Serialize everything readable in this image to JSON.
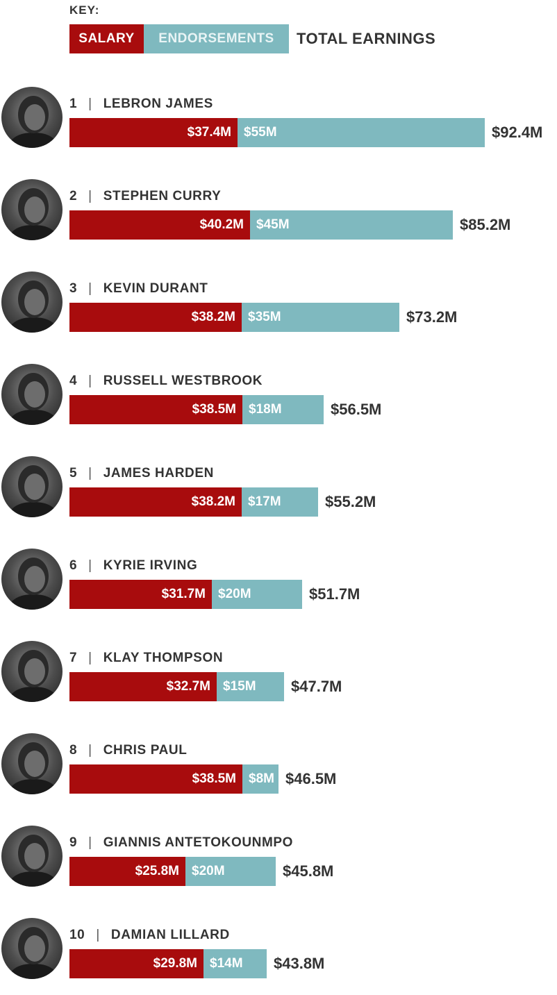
{
  "key": {
    "label": "KEY:",
    "salary": "SALARY",
    "endorsements": "ENDORSEMENTS",
    "total": "TOTAL EARNINGS"
  },
  "colors": {
    "salary": "#a80c0d",
    "endorsements": "#7fb9bf",
    "text": "#333333"
  },
  "chart_data": {
    "type": "bar",
    "orientation": "horizontal",
    "stacked": true,
    "unit": "$M",
    "categories": [
      "LEBRON JAMES",
      "STEPHEN CURRY",
      "KEVIN DURANT",
      "RUSSELL WESTBROOK",
      "JAMES HARDEN",
      "KYRIE IRVING",
      "KLAY THOMPSON",
      "CHRIS PAUL",
      "GIANNIS ANTETOKOUNMPO",
      "DAMIAN LILLARD"
    ],
    "series": [
      {
        "name": "SALARY",
        "values": [
          37.4,
          40.2,
          38.2,
          38.5,
          38.2,
          31.7,
          32.7,
          38.5,
          25.8,
          29.8
        ]
      },
      {
        "name": "ENDORSEMENTS",
        "values": [
          55,
          45,
          35,
          18,
          17,
          20,
          15,
          8,
          20,
          14
        ]
      }
    ],
    "totals": [
      92.4,
      85.2,
      73.2,
      56.5,
      55.2,
      51.7,
      47.7,
      46.5,
      45.8,
      43.8
    ],
    "players": [
      {
        "rank": "1",
        "name": "LEBRON JAMES",
        "salary": 37.4,
        "endorsements": 55,
        "total": 92.4,
        "salary_label": "$37.4M",
        "endorsements_label": "$55M",
        "total_label": "$92.4M"
      },
      {
        "rank": "2",
        "name": "STEPHEN CURRY",
        "salary": 40.2,
        "endorsements": 45,
        "total": 85.2,
        "salary_label": "$40.2M",
        "endorsements_label": "$45M",
        "total_label": "$85.2M"
      },
      {
        "rank": "3",
        "name": "KEVIN DURANT",
        "salary": 38.2,
        "endorsements": 35,
        "total": 73.2,
        "salary_label": "$38.2M",
        "endorsements_label": "$35M",
        "total_label": "$73.2M"
      },
      {
        "rank": "4",
        "name": "RUSSELL WESTBROOK",
        "salary": 38.5,
        "endorsements": 18,
        "total": 56.5,
        "salary_label": "$38.5M",
        "endorsements_label": "$18M",
        "total_label": "$56.5M"
      },
      {
        "rank": "5",
        "name": "JAMES HARDEN",
        "salary": 38.2,
        "endorsements": 17,
        "total": 55.2,
        "salary_label": "$38.2M",
        "endorsements_label": "$17M",
        "total_label": "$55.2M"
      },
      {
        "rank": "6",
        "name": "KYRIE IRVING",
        "salary": 31.7,
        "endorsements": 20,
        "total": 51.7,
        "salary_label": "$31.7M",
        "endorsements_label": "$20M",
        "total_label": "$51.7M"
      },
      {
        "rank": "7",
        "name": "KLAY THOMPSON",
        "salary": 32.7,
        "endorsements": 15,
        "total": 47.7,
        "salary_label": "$32.7M",
        "endorsements_label": "$15M",
        "total_label": "$47.7M"
      },
      {
        "rank": "8",
        "name": "CHRIS PAUL",
        "salary": 38.5,
        "endorsements": 8,
        "total": 46.5,
        "salary_label": "$38.5M",
        "endorsements_label": "$8M",
        "total_label": "$46.5M"
      },
      {
        "rank": "9",
        "name": "GIANNIS ANTETOKOUNMPO",
        "salary": 25.8,
        "endorsements": 20,
        "total": 45.8,
        "salary_label": "$25.8M",
        "endorsements_label": "$20M",
        "total_label": "$45.8M"
      },
      {
        "rank": "10",
        "name": "DAMIAN LILLARD",
        "salary": 29.8,
        "endorsements": 14,
        "total": 43.8,
        "salary_label": "$29.8M",
        "endorsements_label": "$14M",
        "total_label": "$43.8M"
      }
    ]
  }
}
